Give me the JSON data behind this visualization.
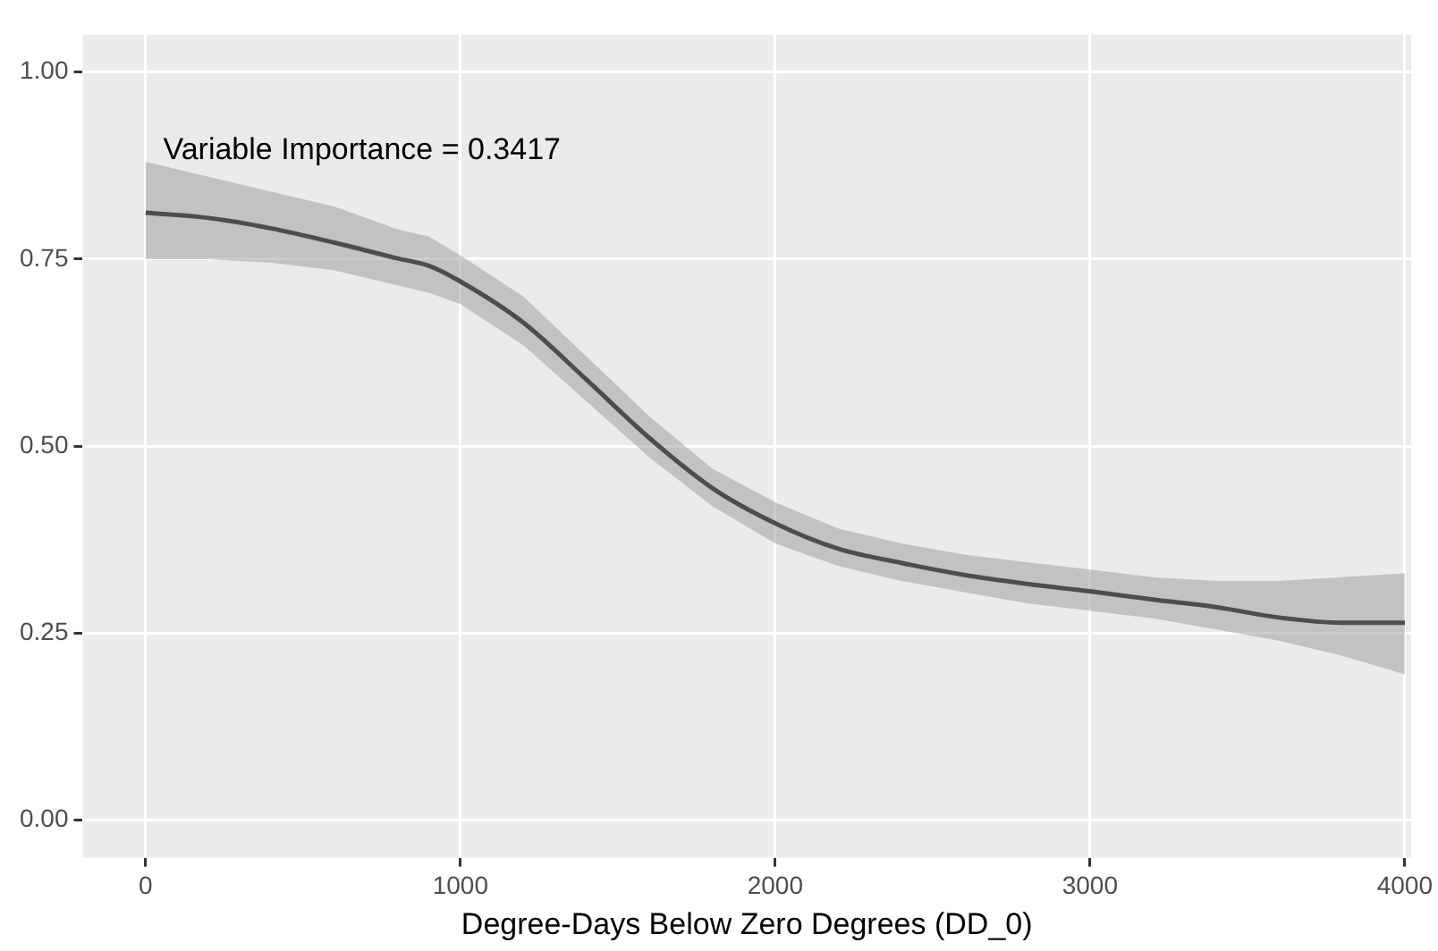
{
  "chart_data": {
    "type": "line",
    "xlabel": "Degree-Days Below Zero Degrees (DD_0)",
    "annotations": [
      "Variable Importance = 0.3417"
    ],
    "x": [
      0,
      200,
      400,
      600,
      800,
      900,
      1000,
      1200,
      1400,
      1600,
      1800,
      2000,
      2200,
      2400,
      2600,
      2800,
      3000,
      3200,
      3400,
      3600,
      3800,
      4000
    ],
    "series": [
      {
        "color": "#000000",
        "values": [
          0.812,
          0.805,
          0.791,
          0.772,
          0.751,
          0.741,
          0.72,
          0.665,
          0.589,
          0.511,
          0.444,
          0.397,
          0.363,
          0.344,
          0.328,
          0.316,
          0.306,
          0.295,
          0.285,
          0.271,
          0.264,
          0.264
        ],
        "upper": [
          0.88,
          0.86,
          0.84,
          0.82,
          0.79,
          0.78,
          0.755,
          0.7,
          0.62,
          0.54,
          0.47,
          0.425,
          0.39,
          0.37,
          0.355,
          0.345,
          0.335,
          0.325,
          0.32,
          0.32,
          0.325,
          0.33
        ],
        "lower": [
          0.75,
          0.75,
          0.745,
          0.735,
          0.715,
          0.705,
          0.69,
          0.635,
          0.56,
          0.485,
          0.42,
          0.37,
          0.34,
          0.32,
          0.305,
          0.29,
          0.28,
          0.27,
          0.255,
          0.24,
          0.22,
          0.195
        ]
      }
    ],
    "xlim": [
      -200,
      4020
    ],
    "ylim": [
      -0.05,
      1.05
    ],
    "xticks": [
      0,
      1000,
      2000,
      3000,
      4000
    ],
    "yticks": [
      {
        "value": 0,
        "label": "0.00"
      },
      {
        "value": 0.25,
        "label": "0.25"
      },
      {
        "value": 0.5,
        "label": "0.50"
      },
      {
        "value": 0.75,
        "label": "0.75"
      },
      {
        "value": 1,
        "label": "1.00"
      }
    ],
    "grid": true,
    "legend": false,
    "marker": "none",
    "line_style": "solid"
  }
}
